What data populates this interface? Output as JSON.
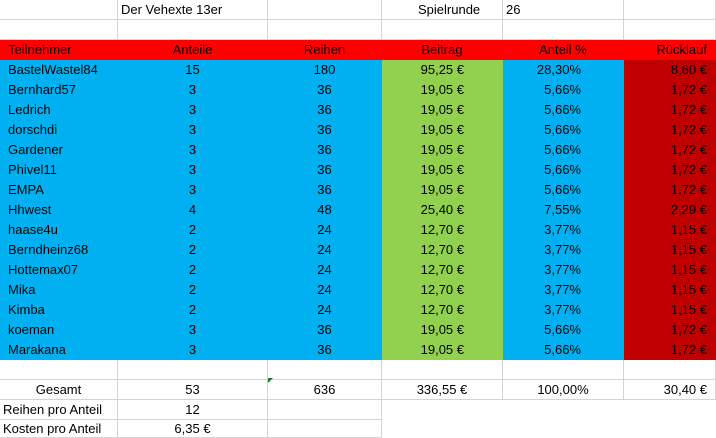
{
  "title_cell": "Der Vehexte 13er",
  "round_label": "Spielrunde",
  "round_value": "26",
  "headers": [
    "Teilnehmer",
    "Anteile",
    "Reihen",
    "Beitrag",
    "Anteil %",
    "Rücklauf"
  ],
  "rows": [
    [
      "BastelWastel84",
      "15",
      "180",
      "95,25 €",
      "28,30%",
      "8,60 €"
    ],
    [
      "Bernhard57",
      "3",
      "36",
      "19,05 €",
      "5,66%",
      "1,72 €"
    ],
    [
      "Ledrich",
      "3",
      "36",
      "19,05 €",
      "5,66%",
      "1,72 €"
    ],
    [
      "dorschdi",
      "3",
      "36",
      "19,05 €",
      "5,66%",
      "1,72 €"
    ],
    [
      "Gardener",
      "3",
      "36",
      "19,05 €",
      "5,66%",
      "1,72 €"
    ],
    [
      "Phivel11",
      "3",
      "36",
      "19,05 €",
      "5,66%",
      "1,72 €"
    ],
    [
      "EMPA",
      "3",
      "36",
      "19,05 €",
      "5,66%",
      "1,72 €"
    ],
    [
      "Hhwest",
      "4",
      "48",
      "25,40 €",
      "7,55%",
      "2,29 €"
    ],
    [
      "haase4u",
      "2",
      "24",
      "12,70 €",
      "3,77%",
      "1,15 €"
    ],
    [
      "Berndheinz68",
      "2",
      "24",
      "12,70 €",
      "3,77%",
      "1,15 €"
    ],
    [
      "Hottemax07",
      "2",
      "24",
      "12,70 €",
      "3,77%",
      "1,15 €"
    ],
    [
      "Mika",
      "2",
      "24",
      "12,70 €",
      "3,77%",
      "1,15 €"
    ],
    [
      "Kimba",
      "2",
      "24",
      "12,70 €",
      "3,77%",
      "1,15 €"
    ],
    [
      "koeman",
      "3",
      "36",
      "19,05 €",
      "5,66%",
      "1,72 €"
    ],
    [
      "Marakana",
      "3",
      "36",
      "19,05 €",
      "5,66%",
      "1,72 €"
    ]
  ],
  "totals": [
    "Gesamt",
    "53",
    "636",
    "336,55 €",
    "100,00%",
    "30,40 €"
  ],
  "reihen_pro_anteil": {
    "label": "Reihen pro Anteil",
    "value": "12"
  },
  "kosten_pro_anteil": {
    "label": "Kosten pro Anteil",
    "value": "6,35 €"
  },
  "colors": {
    "header": "#ff0000",
    "participants": "#00b0f0",
    "beitrag": "#92d050",
    "ruecklauf": "#c00000",
    "gridline": "#d4d4d4"
  }
}
